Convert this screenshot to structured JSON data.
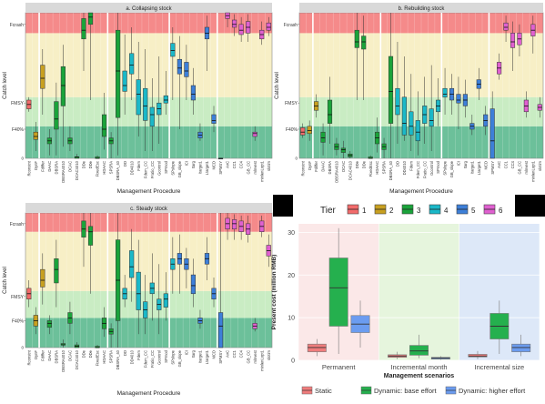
{
  "chart_data": [
    {
      "type": "boxplot",
      "title": "a. Collapsing stock",
      "xlabel": "Management Procedure",
      "ylabel": "Catch level",
      "ref_lines": [
        "Fcrash",
        "FMSY",
        "F40%"
      ],
      "y_bands": {
        "red": [
          0.86,
          1.0
        ],
        "yellow": [
          0.42,
          0.86
        ],
        "light_green": [
          0.22,
          0.42
        ],
        "dark_green": [
          0.0,
          0.22
        ]
      },
      "ylim": [
        0,
        1.0
      ],
      "categories": [
        "Rconstnt",
        "DynF",
        "Fdiffer",
        "DAAC",
        "DBSRA",
        "DBSRA4010",
        "DCAC",
        "DCAC4010",
        "DDe",
        "DDe",
        "FixedEsc",
        "HDAAC",
        "SPSRA",
        "DBSRA_40",
        "DD",
        "DD4010",
        "Fdem",
        "Fdem_CC",
        "Fratio_CC",
        "Gcontrol",
        "SPmod",
        "SPslope",
        "GB_slope",
        "ICI",
        "Itarg",
        "Itarget1",
        "Ltarget1",
        "MCD",
        "SPMSY",
        "AvC",
        "CC1",
        "CC4",
        "GB_CC",
        "mlnvest",
        "minlenLopt1",
        "slotim"
      ],
      "boxes": [
        [
          0.32,
          0.34,
          0.37,
          0.4,
          0.42,
          "#f26b6b"
        ],
        [
          0.05,
          0.13,
          0.15,
          0.18,
          0.25,
          "#c8a020"
        ],
        [
          0.3,
          0.48,
          0.55,
          0.64,
          0.75,
          "#c8a020"
        ],
        [
          0.02,
          0.1,
          0.12,
          0.14,
          0.2,
          "#1aa33a"
        ],
        [
          0.02,
          0.2,
          0.27,
          0.39,
          0.52,
          "#1aa33a"
        ],
        [
          0.08,
          0.36,
          0.5,
          0.63,
          0.78,
          "#1aa33a"
        ],
        [
          0.05,
          0.1,
          0.12,
          0.14,
          0.22,
          "#1aa33a"
        ],
        [
          0.0,
          0.0,
          0.01,
          0.01,
          0.03,
          "#1aa33a"
        ],
        [
          0.6,
          0.82,
          0.88,
          0.96,
          1.0,
          "#1aa33a"
        ],
        [
          0.4,
          0.92,
          0.97,
          1.0,
          1.0,
          "#1aa33a"
        ],
        [
          0.0,
          0.0,
          0.0,
          0.01,
          0.02,
          "#1aa33a"
        ],
        [
          0.06,
          0.15,
          0.2,
          0.3,
          0.45,
          "#1aa33a"
        ],
        [
          0.0,
          0.1,
          0.12,
          0.14,
          0.18,
          "#1aa33a"
        ],
        [
          0.02,
          0.28,
          0.6,
          0.88,
          1.0,
          "#1aa33a"
        ],
        [
          0.3,
          0.46,
          0.5,
          0.6,
          0.85,
          "#1bb8c8"
        ],
        [
          0.4,
          0.58,
          0.64,
          0.72,
          0.9,
          "#1bb8c8"
        ],
        [
          0.15,
          0.3,
          0.44,
          0.54,
          0.8,
          "#1bb8c8"
        ],
        [
          0.05,
          0.26,
          0.36,
          0.48,
          0.75,
          "#1bb8c8"
        ],
        [
          0.05,
          0.22,
          0.3,
          0.35,
          0.55,
          "#1bb8c8"
        ],
        [
          0.1,
          0.3,
          0.34,
          0.38,
          0.7,
          "#1bb8c8"
        ],
        [
          0.3,
          0.38,
          0.4,
          0.43,
          0.6,
          "#1bb8c8"
        ],
        [
          0.4,
          0.7,
          0.74,
          0.79,
          0.9,
          "#1bb8c8"
        ],
        [
          0.2,
          0.58,
          0.62,
          0.68,
          0.84,
          "#3d7fd8"
        ],
        [
          0.4,
          0.56,
          0.6,
          0.66,
          0.78,
          "#3d7fd8"
        ],
        [
          0.3,
          0.4,
          0.44,
          0.5,
          0.62,
          "#3d7fd8"
        ],
        [
          0.12,
          0.14,
          0.16,
          0.18,
          0.24,
          "#3d7fd8"
        ],
        [
          0.6,
          0.82,
          0.86,
          0.9,
          0.98,
          "#3d7fd8"
        ],
        [
          0.18,
          0.24,
          0.26,
          0.3,
          0.36,
          "#3d7fd8"
        ],
        [
          0.0,
          0.0,
          0.0,
          0.0,
          0.0,
          "#3d7fd8"
        ],
        [
          0.9,
          0.96,
          0.98,
          1.0,
          1.0,
          "#e060d0"
        ],
        [
          0.84,
          0.9,
          0.92,
          0.95,
          0.99,
          "#e060d0"
        ],
        [
          0.8,
          0.85,
          0.88,
          0.92,
          0.97,
          "#e060d0"
        ],
        [
          0.8,
          0.86,
          0.9,
          0.94,
          0.99,
          "#e060d0"
        ],
        [
          0.12,
          0.15,
          0.17,
          0.18,
          0.22,
          "#e060d0"
        ],
        [
          0.78,
          0.82,
          0.85,
          0.88,
          0.94,
          "#e060d0"
        ],
        [
          0.84,
          0.88,
          0.9,
          0.93,
          0.97,
          "#e060d0"
        ]
      ]
    },
    {
      "type": "boxplot",
      "title": "b. Rebuilding stock",
      "xlabel": "Management Procedure",
      "ylabel": "Catch level",
      "ref_lines": [
        "Fcrash",
        "FMSY",
        "F40%"
      ],
      "ylim": [
        0,
        1.0
      ],
      "categories": [
        "Rconstnt",
        "DynF",
        "Fdiffer",
        "DAAC",
        "DBSRA",
        "DBSRA4010",
        "DCAC",
        "DCAC4010",
        "DDe",
        "DDe",
        "FixedEsc",
        "HDAAC",
        "SPSRA",
        "DBSRA_40",
        "DD",
        "DD4010",
        "Fdem",
        "Fdem_CC",
        "Fratio_CC",
        "Gcontrol",
        "SPmod",
        "SPslope",
        "GB_slope",
        "ICI",
        "Itarg",
        "Itarget1",
        "Ltarget1",
        "MCD",
        "SPMSY",
        "AvC",
        "CC1",
        "CC4",
        "GB_CC",
        "mlnvest",
        "minlenLopt1",
        "slotim"
      ],
      "boxes": [
        [
          0.14,
          0.16,
          0.18,
          0.21,
          0.24,
          "#f26b6b"
        ],
        [
          0.12,
          0.17,
          0.19,
          0.22,
          0.26,
          "#c8a020"
        ],
        [
          0.28,
          0.33,
          0.36,
          0.39,
          0.44,
          "#c8a020"
        ],
        [
          0.02,
          0.11,
          0.14,
          0.18,
          0.24,
          "#1aa33a"
        ],
        [
          0.1,
          0.24,
          0.3,
          0.4,
          0.56,
          "#1aa33a"
        ],
        [
          0.02,
          0.06,
          0.08,
          0.1,
          0.14,
          "#1aa33a"
        ],
        [
          0.0,
          0.04,
          0.06,
          0.07,
          0.12,
          "#1aa33a"
        ],
        [
          0.0,
          0.01,
          0.02,
          0.03,
          0.05,
          "#1aa33a"
        ],
        [
          0.4,
          0.76,
          0.8,
          0.88,
          1.0,
          "#1aa33a"
        ],
        [
          0.4,
          0.75,
          0.8,
          0.84,
          0.98,
          "#1aa33a"
        ],
        [
          0.0,
          0.0,
          0.0,
          0.01,
          0.02,
          "#1aa33a"
        ],
        [
          0.04,
          0.1,
          0.14,
          0.18,
          0.28,
          "#1aa33a"
        ],
        [
          0.0,
          0.06,
          0.08,
          0.1,
          0.14,
          "#1aa33a"
        ],
        [
          0.0,
          0.24,
          0.46,
          0.7,
          1.0,
          "#1aa33a"
        ],
        [
          0.1,
          0.3,
          0.36,
          0.48,
          0.8,
          "#1bb8c8"
        ],
        [
          0.12,
          0.16,
          0.24,
          0.42,
          0.7,
          "#1bb8c8"
        ],
        [
          0.05,
          0.16,
          0.22,
          0.32,
          0.58,
          "#1bb8c8"
        ],
        [
          0.02,
          0.12,
          0.18,
          0.26,
          0.46,
          "#1bb8c8"
        ],
        [
          0.1,
          0.24,
          0.3,
          0.36,
          0.56,
          "#1bb8c8"
        ],
        [
          0.05,
          0.22,
          0.26,
          0.34,
          0.64,
          "#1bb8c8"
        ],
        [
          0.22,
          0.32,
          0.36,
          0.4,
          0.55,
          "#1bb8c8"
        ],
        [
          0.3,
          0.42,
          0.44,
          0.48,
          0.62,
          "#1bb8c8"
        ],
        [
          0.3,
          0.4,
          0.44,
          0.48,
          0.58,
          "#3d7fd8"
        ],
        [
          0.2,
          0.38,
          0.4,
          0.44,
          0.56,
          "#3d7fd8"
        ],
        [
          0.28,
          0.36,
          0.4,
          0.44,
          0.54,
          "#3d7fd8"
        ],
        [
          0.16,
          0.2,
          0.22,
          0.24,
          0.3,
          "#3d7fd8"
        ],
        [
          0.4,
          0.48,
          0.51,
          0.54,
          0.62,
          "#3d7fd8"
        ],
        [
          0.16,
          0.22,
          0.26,
          0.3,
          0.36,
          "#3d7fd8"
        ],
        [
          0.0,
          0.0,
          0.12,
          0.34,
          0.46,
          "#3d7fd8"
        ],
        [
          0.54,
          0.58,
          0.62,
          0.66,
          0.72,
          "#e060d0"
        ],
        [
          0.8,
          0.88,
          0.9,
          0.93,
          0.98,
          "#e060d0"
        ],
        [
          0.6,
          0.76,
          0.8,
          0.86,
          0.94,
          "#e060d0"
        ],
        [
          0.7,
          0.78,
          0.82,
          0.86,
          0.92,
          "#e060d0"
        ],
        [
          0.28,
          0.32,
          0.36,
          0.4,
          0.46,
          "#e060d0"
        ],
        [
          0.72,
          0.84,
          0.88,
          0.92,
          0.98,
          "#e060d0"
        ],
        [
          0.28,
          0.33,
          0.35,
          0.37,
          0.42,
          "#e060d0"
        ]
      ]
    },
    {
      "type": "boxplot",
      "title": "c. Steady stock",
      "xlabel": "Management Procedure",
      "ylabel": "Catch level",
      "ref_lines": [
        "Fcrash",
        "FMSY",
        "F40%"
      ],
      "ylim": [
        0,
        1.0
      ],
      "categories": [
        "Rconstnt",
        "DynF",
        "Fdiffer",
        "DAAC",
        "DBSRA",
        "DBSRA4010",
        "DCAC",
        "DCAC4010",
        "DDe",
        "DDe",
        "FixedEsc",
        "HDAAC",
        "SPSRA",
        "DBSRA_40",
        "DD",
        "DD4010",
        "Fdem",
        "Fdem_CC",
        "Fratio_CC",
        "Gcontrol",
        "SPmod",
        "SPslope",
        "GB_slope",
        "ICI",
        "Itarg",
        "Itarget1",
        "Ltarget1",
        "MCD",
        "SPMSY",
        "AvC",
        "CC1",
        "CC4",
        "GB_CC",
        "mlnvest",
        "minlenLopt1",
        "slotim"
      ],
      "boxes": [
        [
          0.3,
          0.36,
          0.4,
          0.44,
          0.5,
          "#f26b6b"
        ],
        [
          0.1,
          0.16,
          0.2,
          0.24,
          0.3,
          "#c8a020"
        ],
        [
          0.32,
          0.45,
          0.5,
          0.58,
          0.7,
          "#c8a020"
        ],
        [
          0.1,
          0.15,
          0.18,
          0.2,
          0.24,
          "#1aa33a"
        ],
        [
          0.3,
          0.48,
          0.58,
          0.66,
          0.8,
          "#1aa33a"
        ],
        [
          0.0,
          0.02,
          0.02,
          0.03,
          0.06,
          "#1aa33a"
        ],
        [
          0.1,
          0.18,
          0.22,
          0.26,
          0.34,
          "#1aa33a"
        ],
        [
          0.0,
          0.0,
          0.01,
          0.02,
          0.04,
          "#1aa33a"
        ],
        [
          0.6,
          0.82,
          0.88,
          0.94,
          1.0,
          "#1aa33a"
        ],
        [
          0.4,
          0.76,
          0.86,
          0.9,
          1.0,
          "#1aa33a"
        ],
        [
          0.0,
          0.0,
          0.0,
          0.01,
          0.02,
          "#1aa33a"
        ],
        [
          0.08,
          0.14,
          0.18,
          0.22,
          0.3,
          "#1aa33a"
        ],
        [
          0.0,
          0.1,
          0.12,
          0.14,
          0.18,
          "#1aa33a"
        ],
        [
          0.0,
          0.2,
          0.5,
          0.8,
          1.0,
          "#1aa33a"
        ],
        [
          0.3,
          0.36,
          0.4,
          0.44,
          0.54,
          "#1bb8c8"
        ],
        [
          0.34,
          0.52,
          0.6,
          0.72,
          0.88,
          "#1bb8c8"
        ],
        [
          0.1,
          0.28,
          0.4,
          0.56,
          0.8,
          "#1bb8c8"
        ],
        [
          0.1,
          0.22,
          0.28,
          0.34,
          0.54,
          "#1bb8c8"
        ],
        [
          0.2,
          0.4,
          0.44,
          0.48,
          0.7,
          "#1bb8c8"
        ],
        [
          0.1,
          0.28,
          0.32,
          0.36,
          0.62,
          "#1bb8c8"
        ],
        [
          0.2,
          0.3,
          0.36,
          0.4,
          0.56,
          "#1bb8c8"
        ],
        [
          0.4,
          0.58,
          0.62,
          0.66,
          0.82,
          "#1bb8c8"
        ],
        [
          0.4,
          0.62,
          0.66,
          0.7,
          0.84,
          "#3d7fd8"
        ],
        [
          0.44,
          0.58,
          0.62,
          0.66,
          0.74,
          "#3d7fd8"
        ],
        [
          0.3,
          0.4,
          0.46,
          0.54,
          0.66,
          "#3d7fd8"
        ],
        [
          0.14,
          0.18,
          0.2,
          0.22,
          0.28,
          "#3d7fd8"
        ],
        [
          0.5,
          0.62,
          0.66,
          0.7,
          0.82,
          "#3d7fd8"
        ],
        [
          0.3,
          0.36,
          0.4,
          0.44,
          0.52,
          "#3d7fd8"
        ],
        [
          0.0,
          0.0,
          0.16,
          0.26,
          1.0,
          "#3d7fd8"
        ],
        [
          0.8,
          0.88,
          0.92,
          0.96,
          1.0,
          "#e060d0"
        ],
        [
          0.8,
          0.88,
          0.92,
          0.95,
          0.99,
          "#e060d0"
        ],
        [
          0.8,
          0.86,
          0.9,
          0.94,
          0.98,
          "#e060d0"
        ],
        [
          0.78,
          0.84,
          0.88,
          0.92,
          0.98,
          "#e060d0"
        ],
        [
          0.12,
          0.14,
          0.16,
          0.18,
          0.22,
          "#e060d0"
        ],
        [
          0.82,
          0.86,
          0.9,
          0.94,
          0.98,
          "#e060d0"
        ],
        [
          0.6,
          0.68,
          0.72,
          0.76,
          0.84,
          "#e060d0"
        ]
      ]
    },
    {
      "type": "boxplot",
      "title": "",
      "xlabel": "Management scenarios",
      "ylabel": "Present cost (million RMB)",
      "yticks": [
        "0",
        "10",
        "20",
        "30"
      ],
      "ylim": [
        0,
        32
      ],
      "categories": [
        "Permanent",
        "Incremental month",
        "Incremental size"
      ],
      "background_colors": [
        "#fbe8e8",
        "#e6f5dd",
        "#dde8f8"
      ],
      "series": [
        {
          "name": "Static",
          "color": "#f07c7c",
          "boxes": [
            [
              1.0,
              2.0,
              3.0,
              3.8,
              5.0
            ],
            [
              0.3,
              0.7,
              1.0,
              1.3,
              2.0
            ],
            [
              0.3,
              0.8,
              1.0,
              1.4,
              2.2
            ]
          ]
        },
        {
          "name": "Dynamic: base effort",
          "color": "#25b04e",
          "boxes": [
            [
              1.5,
              8.0,
              17.0,
              24.0,
              31.0
            ],
            [
              0.5,
              1.2,
              2.2,
              3.5,
              6.0
            ],
            [
              1.5,
              5.0,
              8.0,
              11.0,
              14.0
            ]
          ]
        },
        {
          "name": "Dynamic: higher effort",
          "color": "#6b9cf0",
          "boxes": [
            [
              3.0,
              6.5,
              8.5,
              10.5,
              14.0
            ],
            [
              0.1,
              0.3,
              0.5,
              0.7,
              1.0
            ],
            [
              1.0,
              2.0,
              3.0,
              3.8,
              6.0
            ]
          ]
        }
      ]
    }
  ],
  "legend": {
    "tier_title": "Tier",
    "tiers": [
      {
        "label": "1",
        "color": "#f26b6b"
      },
      {
        "label": "2",
        "color": "#c8a020"
      },
      {
        "label": "3",
        "color": "#1aa33a"
      },
      {
        "label": "4",
        "color": "#1bb8c8"
      },
      {
        "label": "5",
        "color": "#3d7fd8"
      },
      {
        "label": "6",
        "color": "#e060d0"
      }
    ]
  },
  "colors": {
    "band_red": "#f58a8a",
    "band_yellow": "#f7efc6",
    "band_light_green": "#c9ecc3",
    "band_dark_green": "#6cc09a",
    "panel_strip": "#d9d9d9",
    "redaction": "#000000"
  }
}
